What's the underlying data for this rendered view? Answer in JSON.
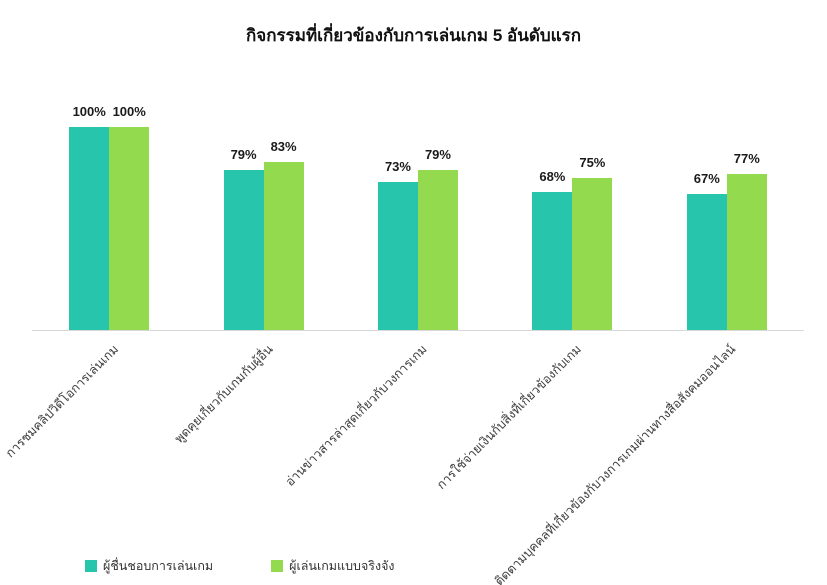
{
  "chart_data": {
    "type": "bar",
    "title": "กิจกรรมที่เกี่ยวข้องกับการเล่นเกม 5 อันดับแรก",
    "categories": [
      "การชมคลิปวิดีโอการเล่นเกม",
      "พูดคุยเกี่ยวกับเกมกับผู้อื่น",
      "อ่านข่าวสารล่าสุดเกี่ยวกับวงการเกม",
      "การใช้จ่ายเงินกับสิ่งที่เกี่ยวข้องกับเกม",
      "ติดตามบุคคลที่เกี่ยวข้องกับวงการเกมผ่านทางสื่อสังคมออนไลน์"
    ],
    "series": [
      {
        "name": "ผู้ชื่นชอบการเล่นเกม",
        "color": "#28c5ad",
        "values": [
          100,
          79,
          73,
          68,
          67
        ]
      },
      {
        "name": "ผู้เล่นเกมแบบจริงจัง",
        "color": "#93da4f",
        "values": [
          100,
          83,
          79,
          75,
          77
        ]
      }
    ],
    "ylim": [
      0,
      100
    ],
    "grid": false,
    "legend_position": "bottom",
    "value_suffix": "%",
    "axis_line_color": "#d8d8d8"
  }
}
